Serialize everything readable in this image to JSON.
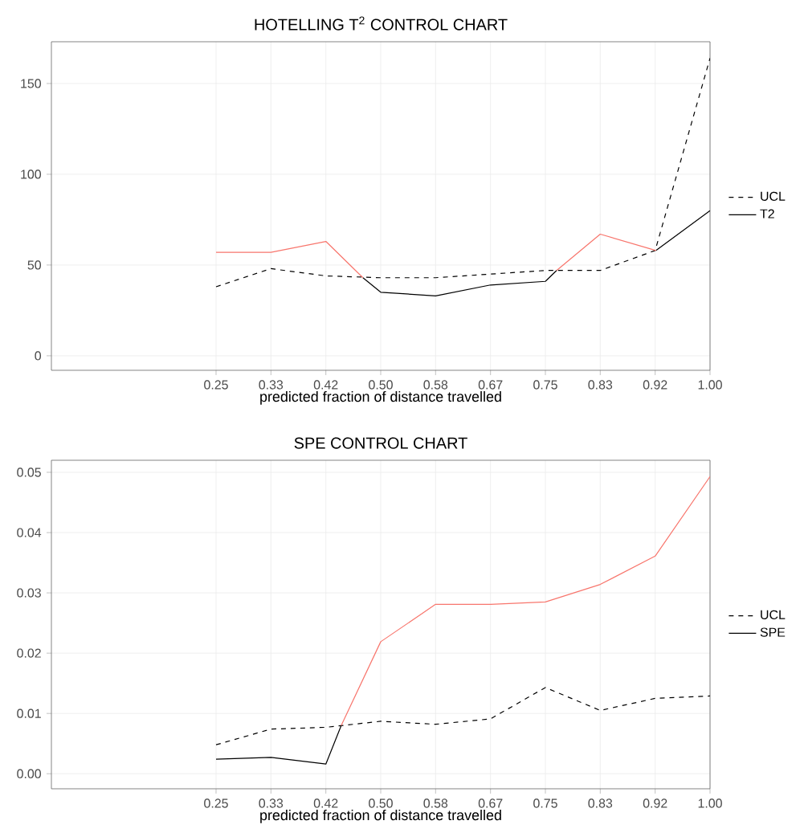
{
  "chart_data": [
    {
      "type": "line",
      "title": "HOTELLING T$^{2}$ CONTROL CHART",
      "xlabel": "predicted fraction of distance travelled",
      "xlim": [
        0,
        1
      ],
      "xticks": [
        {
          "value": 0.25,
          "label": "0.25"
        },
        {
          "value": 0.3333,
          "label": "0.33"
        },
        {
          "value": 0.4167,
          "label": "0.42"
        },
        {
          "value": 0.5,
          "label": "0.50"
        },
        {
          "value": 0.5833,
          "label": "0.58"
        },
        {
          "value": 0.6667,
          "label": "0.67"
        },
        {
          "value": 0.75,
          "label": "0.75"
        },
        {
          "value": 0.8333,
          "label": "0.83"
        },
        {
          "value": 0.9167,
          "label": "0.92"
        },
        {
          "value": 1,
          "label": "1.00"
        }
      ],
      "ylim": [
        -8,
        173
      ],
      "yticks": [
        {
          "value": 0,
          "label": "0"
        },
        {
          "value": 50,
          "label": "50"
        },
        {
          "value": 100,
          "label": "100"
        },
        {
          "value": 150,
          "label": "150"
        }
      ],
      "grid": true,
      "legend": "right",
      "series": [
        {
          "name": "UCL",
          "color": "#000000",
          "line_style": "dashed",
          "x": [
            0.25,
            0.3333,
            0.4167,
            0.5,
            0.5833,
            0.6667,
            0.75,
            0.8333,
            0.9167,
            1
          ],
          "values": [
            38,
            48,
            44,
            43,
            43,
            45,
            47,
            47,
            58,
            164
          ]
        },
        {
          "name": "T2",
          "color": "#000000",
          "line_style": "solid",
          "x": [
            0.473,
            0.5,
            0.5833,
            0.6667,
            0.75,
            0.767,
            0.85,
            0.918,
            1
          ],
          "values": [
            43,
            35,
            33,
            39,
            41,
            47,
            null,
            58,
            80
          ]
        },
        {
          "color": "#f8766d",
          "line_style": "solid",
          "x": [
            0.25,
            0.3333,
            0.4167,
            0.473,
            0.6,
            0.767,
            0.8333,
            0.918
          ],
          "values": [
            57,
            57,
            63,
            43,
            null,
            47,
            67,
            58
          ]
        }
      ]
    },
    {
      "type": "line",
      "title": "SPE CONTROL CHART",
      "xlabel": "predicted fraction of distance travelled",
      "xlim": [
        0,
        1
      ],
      "xticks": [
        {
          "value": 0.25,
          "label": "0.25"
        },
        {
          "value": 0.3333,
          "label": "0.33"
        },
        {
          "value": 0.4167,
          "label": "0.42"
        },
        {
          "value": 0.5,
          "label": "0.50"
        },
        {
          "value": 0.5833,
          "label": "0.58"
        },
        {
          "value": 0.6667,
          "label": "0.67"
        },
        {
          "value": 0.75,
          "label": "0.75"
        },
        {
          "value": 0.8333,
          "label": "0.83"
        },
        {
          "value": 0.9167,
          "label": "0.92"
        },
        {
          "value": 1,
          "label": "1.00"
        }
      ],
      "ylim": [
        -0.0025,
        0.052
      ],
      "yticks": [
        {
          "value": 0,
          "label": "0.00"
        },
        {
          "value": 0.01,
          "label": "0.01"
        },
        {
          "value": 0.02,
          "label": "0.02"
        },
        {
          "value": 0.03,
          "label": "0.03"
        },
        {
          "value": 0.04,
          "label": "0.04"
        },
        {
          "value": 0.05,
          "label": "0.05"
        }
      ],
      "grid": true,
      "legend": "right",
      "series": [
        {
          "name": "UCL",
          "color": "#000000",
          "line_style": "dashed",
          "x": [
            0.25,
            0.3333,
            0.4167,
            0.5,
            0.5833,
            0.6667,
            0.75,
            0.8333,
            0.9167,
            1
          ],
          "values": [
            0.0048,
            0.0074,
            0.0077,
            0.0087,
            0.0082,
            0.0091,
            0.0143,
            0.0105,
            0.0125,
            0.0129
          ]
        },
        {
          "name": "SPE",
          "color": "#000000",
          "line_style": "solid",
          "x": [
            0.25,
            0.3333,
            0.4167,
            0.44
          ],
          "values": [
            0.0024,
            0.0027,
            0.0016,
            0.008
          ]
        },
        {
          "color": "#f8766d",
          "line_style": "solid",
          "x": [
            0.44,
            0.5,
            0.5833,
            0.6667,
            0.75,
            0.8333,
            0.9167,
            1
          ],
          "values": [
            0.008,
            0.0219,
            0.0281,
            0.0281,
            0.0285,
            0.0314,
            0.0361,
            0.0493
          ]
        }
      ]
    }
  ]
}
